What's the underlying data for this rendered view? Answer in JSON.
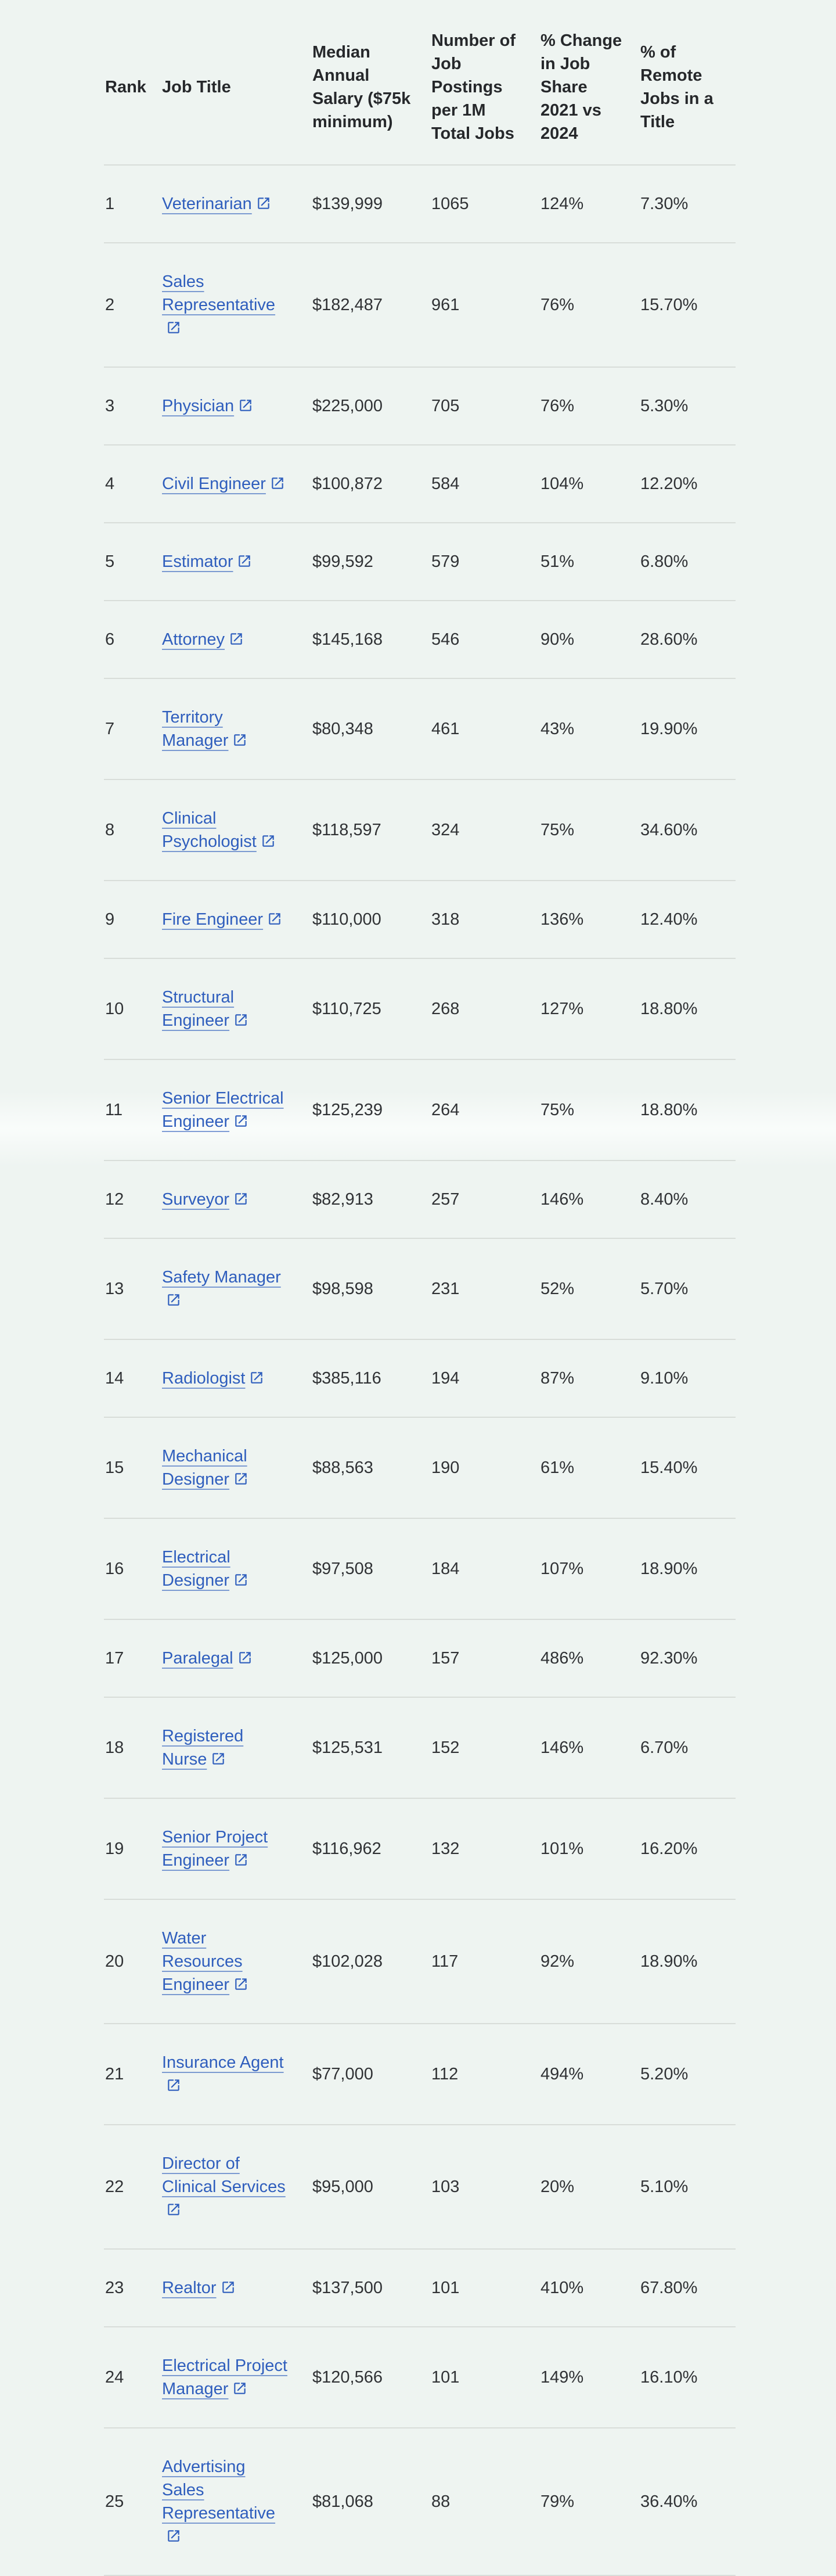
{
  "page": {
    "background_color": "#eef4f1",
    "text_color": "#303235",
    "link_color": "#2f5ebd",
    "divider_color": "#d8ddd9"
  },
  "table": {
    "external_link_icon": "open-in-new-icon",
    "columns": [
      {
        "id": "rank",
        "label_lines": [
          "Rank"
        ]
      },
      {
        "id": "job_title",
        "label_lines": [
          "Job Title"
        ]
      },
      {
        "id": "salary",
        "label_lines": [
          "Median",
          "Annual",
          "Salary ($75k",
          "minimum)"
        ]
      },
      {
        "id": "postings",
        "label_lines": [
          "Number of",
          "Job",
          "Postings",
          "per 1M",
          "Total Jobs"
        ]
      },
      {
        "id": "change",
        "label_lines": [
          "% Change",
          "in Job",
          "Share",
          "2021 vs",
          "2024"
        ]
      },
      {
        "id": "remote",
        "label_lines": [
          "% of",
          "Remote",
          "Jobs in a",
          "Title"
        ]
      }
    ],
    "rows": [
      {
        "rank": "1",
        "title_lines": [
          "Veterinarian"
        ],
        "salary": "$139,999",
        "postings": "1065",
        "change": "124%",
        "remote": "7.30%"
      },
      {
        "rank": "2",
        "title_lines": [
          "Sales",
          "Representative",
          ""
        ],
        "salary": "$182,487",
        "postings": "961",
        "change": "76%",
        "remote": "15.70%"
      },
      {
        "rank": "3",
        "title_lines": [
          "Physician"
        ],
        "salary": "$225,000",
        "postings": "705",
        "change": "76%",
        "remote": "5.30%"
      },
      {
        "rank": "4",
        "title_lines": [
          "Civil Engineer"
        ],
        "salary": "$100,872",
        "postings": "584",
        "change": "104%",
        "remote": "12.20%"
      },
      {
        "rank": "5",
        "title_lines": [
          "Estimator"
        ],
        "salary": "$99,592",
        "postings": "579",
        "change": "51%",
        "remote": "6.80%"
      },
      {
        "rank": "6",
        "title_lines": [
          "Attorney"
        ],
        "salary": "$145,168",
        "postings": "546",
        "change": "90%",
        "remote": "28.60%"
      },
      {
        "rank": "7",
        "title_lines": [
          "Territory",
          "Manager"
        ],
        "salary": "$80,348",
        "postings": "461",
        "change": "43%",
        "remote": "19.90%"
      },
      {
        "rank": "8",
        "title_lines": [
          "Clinical",
          "Psychologist"
        ],
        "salary": "$118,597",
        "postings": "324",
        "change": "75%",
        "remote": "34.60%"
      },
      {
        "rank": "9",
        "title_lines": [
          "Fire Engineer"
        ],
        "salary": "$110,000",
        "postings": "318",
        "change": "136%",
        "remote": "12.40%"
      },
      {
        "rank": "10",
        "title_lines": [
          "Structural",
          "Engineer"
        ],
        "salary": "$110,725",
        "postings": "268",
        "change": "127%",
        "remote": "18.80%"
      },
      {
        "rank": "11",
        "title_lines": [
          "Senior Electrical",
          "Engineer"
        ],
        "salary": "$125,239",
        "postings": "264",
        "change": "75%",
        "remote": "18.80%"
      },
      {
        "rank": "12",
        "title_lines": [
          "Surveyor"
        ],
        "salary": "$82,913",
        "postings": "257",
        "change": "146%",
        "remote": "8.40%"
      },
      {
        "rank": "13",
        "title_lines": [
          "Safety Manager",
          ""
        ],
        "salary": "$98,598",
        "postings": "231",
        "change": "52%",
        "remote": "5.70%"
      },
      {
        "rank": "14",
        "title_lines": [
          "Radiologist"
        ],
        "salary": "$385,116",
        "postings": "194",
        "change": "87%",
        "remote": "9.10%"
      },
      {
        "rank": "15",
        "title_lines": [
          "Mechanical",
          "Designer"
        ],
        "salary": "$88,563",
        "postings": "190",
        "change": "61%",
        "remote": "15.40%"
      },
      {
        "rank": "16",
        "title_lines": [
          "Electrical",
          "Designer"
        ],
        "salary": "$97,508",
        "postings": "184",
        "change": "107%",
        "remote": "18.90%"
      },
      {
        "rank": "17",
        "title_lines": [
          "Paralegal"
        ],
        "salary": "$125,000",
        "postings": "157",
        "change": "486%",
        "remote": "92.30%"
      },
      {
        "rank": "18",
        "title_lines": [
          "Registered",
          "Nurse"
        ],
        "salary": "$125,531",
        "postings": "152",
        "change": "146%",
        "remote": "6.70%"
      },
      {
        "rank": "19",
        "title_lines": [
          "Senior Project",
          "Engineer"
        ],
        "salary": "$116,962",
        "postings": "132",
        "change": "101%",
        "remote": "16.20%"
      },
      {
        "rank": "20",
        "title_lines": [
          "Water",
          "Resources",
          "Engineer"
        ],
        "salary": "$102,028",
        "postings": "117",
        "change": "92%",
        "remote": "18.90%"
      },
      {
        "rank": "21",
        "title_lines": [
          "Insurance Agent",
          ""
        ],
        "salary": "$77,000",
        "postings": "112",
        "change": "494%",
        "remote": "5.20%"
      },
      {
        "rank": "22",
        "title_lines": [
          "Director of",
          "Clinical Services",
          ""
        ],
        "salary": "$95,000",
        "postings": "103",
        "change": "20%",
        "remote": "5.10%"
      },
      {
        "rank": "23",
        "title_lines": [
          "Realtor"
        ],
        "salary": "$137,500",
        "postings": "101",
        "change": "410%",
        "remote": "67.80%"
      },
      {
        "rank": "24",
        "title_lines": [
          "Electrical Project",
          "Manager"
        ],
        "salary": "$120,566",
        "postings": "101",
        "change": "149%",
        "remote": "16.10%"
      },
      {
        "rank": "25",
        "title_lines": [
          "Advertising",
          "Sales",
          "Representative",
          ""
        ],
        "salary": "$81,068",
        "postings": "88",
        "change": "79%",
        "remote": "36.40%"
      }
    ]
  }
}
